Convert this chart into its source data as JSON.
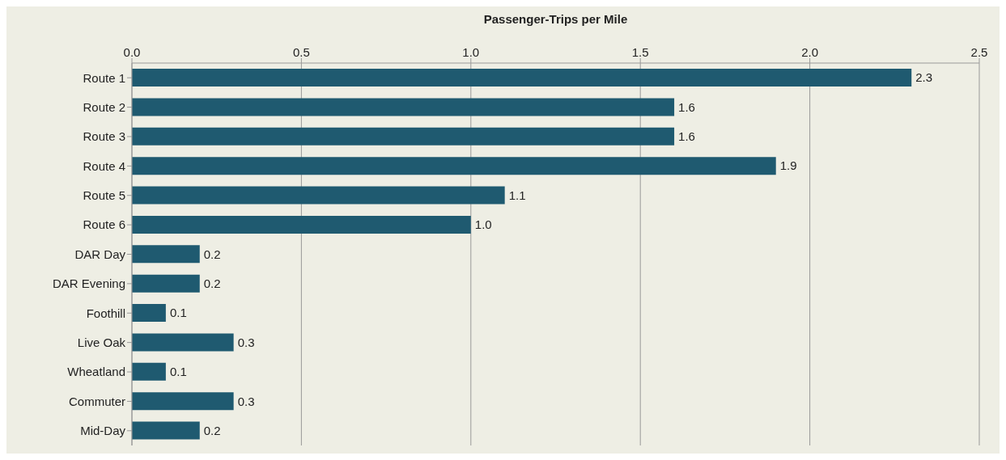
{
  "chart_data": {
    "type": "bar",
    "orientation": "horizontal",
    "xlabel": "Passenger-Trips per Mile",
    "categories": [
      "Route 1",
      "Route 2",
      "Route 3",
      "Route 4",
      "Route 5",
      "Route 6",
      "DAR Day",
      "DAR Evening",
      "Foothill",
      "Live Oak",
      "Wheatland",
      "Commuter",
      "Mid-Day"
    ],
    "values": [
      2.3,
      1.6,
      1.6,
      1.9,
      1.1,
      1.0,
      0.2,
      0.2,
      0.1,
      0.3,
      0.1,
      0.3,
      0.2
    ],
    "value_labels": [
      "2.3",
      "1.6",
      "1.6",
      "1.9",
      "1.1",
      "1.0",
      "0.2",
      "0.2",
      "0.1",
      "0.3",
      "0.1",
      "0.3",
      "0.2"
    ],
    "color": "#1f5a70",
    "xlim": [
      0,
      2.5
    ],
    "xticks": [
      {
        "value": 0,
        "label": "0.0"
      },
      {
        "value": 0.5,
        "label": "0.5"
      },
      {
        "value": 1,
        "label": "1.0"
      },
      {
        "value": 1.5,
        "label": "1.5"
      },
      {
        "value": 2,
        "label": "2.0"
      },
      {
        "value": 2.5,
        "label": "2.5"
      }
    ],
    "grid": "x",
    "legend": false
  }
}
